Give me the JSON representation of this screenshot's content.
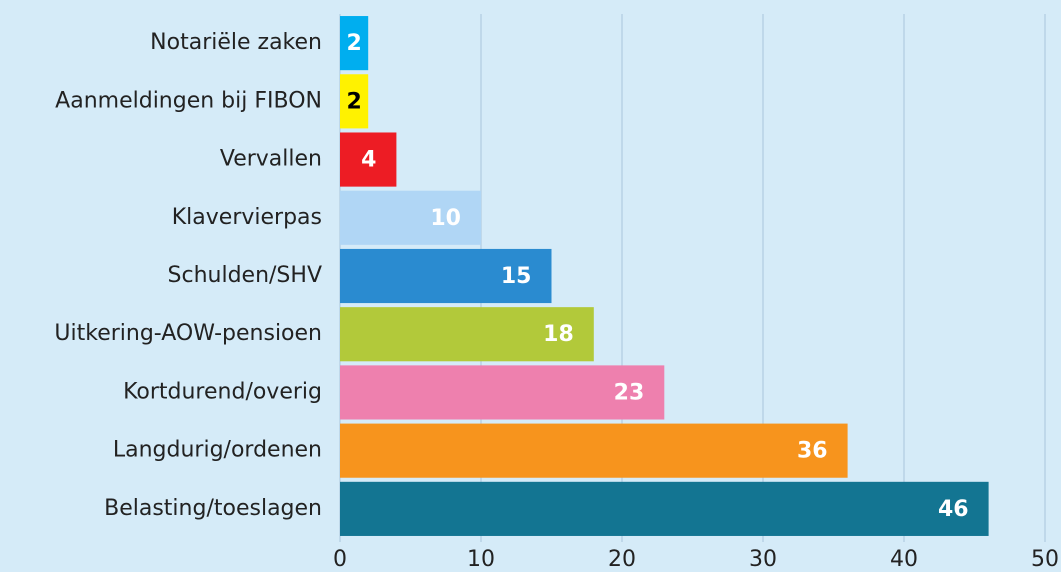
{
  "chart_data": {
    "type": "bar",
    "orientation": "horizontal",
    "categories": [
      "Notariële zaken",
      "Aanmeldingen bij FIBON",
      "Vervallen",
      "Klavervierpas",
      "Schulden/SHV",
      "Uitkering-AOW-pensioen",
      "Kortdurend/overig",
      "Langdurig/ordenen",
      "Belasting/toeslagen"
    ],
    "values": [
      2,
      2,
      4,
      10,
      15,
      18,
      23,
      36,
      46
    ],
    "colors": [
      "#00aeef",
      "#fff200",
      "#ed1c24",
      "#b0d6f5",
      "#2a8bd0",
      "#b2c93a",
      "#ee80ae",
      "#f7941d",
      "#137592"
    ],
    "xlim": [
      0,
      50
    ],
    "xticks": [
      0,
      10,
      20,
      30,
      40,
      50
    ],
    "grid": true
  }
}
